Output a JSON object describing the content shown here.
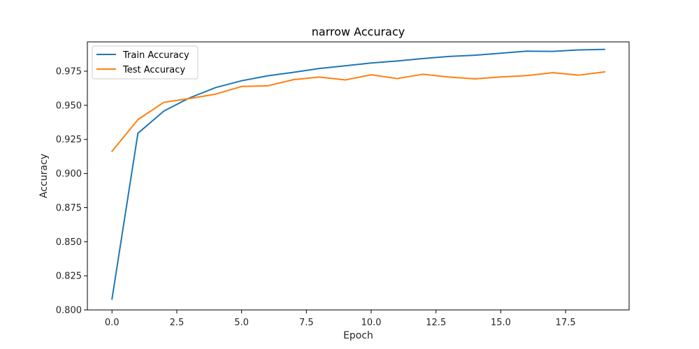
{
  "chart_data": {
    "type": "line",
    "title": "narrow Accuracy",
    "xlabel": "Epoch",
    "ylabel": "Accuracy",
    "xlim": [
      -0.95,
      19.95
    ],
    "ylim": [
      0.8,
      0.9965
    ],
    "xticks": [
      0,
      2.5,
      5,
      7.5,
      10,
      12.5,
      15,
      17.5
    ],
    "xtick_labels": [
      "0.0",
      "2.5",
      "5.0",
      "7.5",
      "10.0",
      "12.5",
      "15.0",
      "17.5"
    ],
    "yticks": [
      0.8,
      0.825,
      0.85,
      0.875,
      0.9,
      0.925,
      0.95,
      0.975
    ],
    "ytick_labels": [
      "0.800",
      "0.825",
      "0.850",
      "0.875",
      "0.900",
      "0.925",
      "0.950",
      "0.975"
    ],
    "grid": false,
    "legend_position": "top-left",
    "x": [
      0,
      1,
      2,
      3,
      4,
      5,
      6,
      7,
      8,
      9,
      10,
      11,
      12,
      13,
      14,
      15,
      16,
      17,
      18,
      19
    ],
    "series": [
      {
        "name": "Train Accuracy",
        "color": "#1f77b4",
        "values": [
          0.808,
          0.9295,
          0.9458,
          0.9555,
          0.963,
          0.968,
          0.9716,
          0.9742,
          0.977,
          0.979,
          0.981,
          0.9825,
          0.9843,
          0.9858,
          0.9867,
          0.9882,
          0.9897,
          0.9895,
          0.9906,
          0.991
        ]
      },
      {
        "name": "Test Accuracy",
        "color": "#ff7f0e",
        "values": [
          0.9163,
          0.9395,
          0.9522,
          0.955,
          0.9582,
          0.9638,
          0.9643,
          0.9688,
          0.9707,
          0.9686,
          0.9724,
          0.9696,
          0.9728,
          0.9707,
          0.9694,
          0.9708,
          0.9718,
          0.9739,
          0.9721,
          0.9745
        ]
      }
    ]
  }
}
